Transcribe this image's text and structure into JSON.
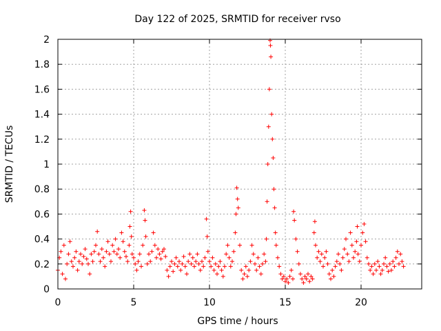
{
  "chart_data": {
    "type": "scatter",
    "title": "Day 122 of 2025, SRMTID for receiver rvso",
    "xlabel": "GPS time / hours",
    "ylabel": "SRMTID / TECUs",
    "xlim": [
      0,
      24
    ],
    "ylim": [
      0,
      2
    ],
    "xticks": [
      0,
      5,
      10,
      15,
      20
    ],
    "yticks": [
      0,
      0.2,
      0.4,
      0.6,
      0.8,
      1,
      1.2,
      1.4,
      1.6,
      1.8,
      2
    ],
    "grid": true,
    "marker": "+",
    "color": "#ff0000",
    "series": [
      {
        "name": "SRMTID",
        "points": [
          [
            0.0,
            0.15
          ],
          [
            0.1,
            0.25
          ],
          [
            0.2,
            0.3
          ],
          [
            0.3,
            0.12
          ],
          [
            0.4,
            0.35
          ],
          [
            0.5,
            0.08
          ],
          [
            0.6,
            0.2
          ],
          [
            0.7,
            0.28
          ],
          [
            0.8,
            0.38
          ],
          [
            0.9,
            0.22
          ],
          [
            1.0,
            0.18
          ],
          [
            1.1,
            0.25
          ],
          [
            1.2,
            0.3
          ],
          [
            1.3,
            0.15
          ],
          [
            1.4,
            0.22
          ],
          [
            1.5,
            0.28
          ],
          [
            1.6,
            0.2
          ],
          [
            1.7,
            0.26
          ],
          [
            1.8,
            0.32
          ],
          [
            1.9,
            0.24
          ],
          [
            2.0,
            0.2
          ],
          [
            2.1,
            0.12
          ],
          [
            2.2,
            0.28
          ],
          [
            2.3,
            0.22
          ],
          [
            2.4,
            0.3
          ],
          [
            2.5,
            0.35
          ],
          [
            2.6,
            0.46
          ],
          [
            2.7,
            0.28
          ],
          [
            2.8,
            0.22
          ],
          [
            2.9,
            0.32
          ],
          [
            3.0,
            0.25
          ],
          [
            3.1,
            0.18
          ],
          [
            3.2,
            0.3
          ],
          [
            3.3,
            0.38
          ],
          [
            3.4,
            0.28
          ],
          [
            3.5,
            0.22
          ],
          [
            3.6,
            0.35
          ],
          [
            3.7,
            0.3
          ],
          [
            3.8,
            0.4
          ],
          [
            3.9,
            0.28
          ],
          [
            4.0,
            0.32
          ],
          [
            4.1,
            0.25
          ],
          [
            4.2,
            0.45
          ],
          [
            4.3,
            0.38
          ],
          [
            4.4,
            0.3
          ],
          [
            4.5,
            0.26
          ],
          [
            4.6,
            0.22
          ],
          [
            4.7,
            0.35
          ],
          [
            4.75,
            0.5
          ],
          [
            4.8,
            0.62
          ],
          [
            4.85,
            0.42
          ],
          [
            4.9,
            0.28
          ],
          [
            5.0,
            0.25
          ],
          [
            5.1,
            0.2
          ],
          [
            5.2,
            0.15
          ],
          [
            5.3,
            0.22
          ],
          [
            5.4,
            0.28
          ],
          [
            5.5,
            0.18
          ],
          [
            5.6,
            0.35
          ],
          [
            5.7,
            0.63
          ],
          [
            5.75,
            0.55
          ],
          [
            5.8,
            0.42
          ],
          [
            5.9,
            0.2
          ],
          [
            6.0,
            0.28
          ],
          [
            6.1,
            0.22
          ],
          [
            6.2,
            0.3
          ],
          [
            6.3,
            0.45
          ],
          [
            6.4,
            0.35
          ],
          [
            6.5,
            0.25
          ],
          [
            6.6,
            0.32
          ],
          [
            6.7,
            0.28
          ],
          [
            6.8,
            0.24
          ],
          [
            6.9,
            0.3
          ],
          [
            7.0,
            0.32
          ],
          [
            7.1,
            0.26
          ],
          [
            7.2,
            0.15
          ],
          [
            7.3,
            0.1
          ],
          [
            7.4,
            0.18
          ],
          [
            7.5,
            0.22
          ],
          [
            7.6,
            0.14
          ],
          [
            7.7,
            0.2
          ],
          [
            7.8,
            0.25
          ],
          [
            7.9,
            0.18
          ],
          [
            8.0,
            0.22
          ],
          [
            8.1,
            0.15
          ],
          [
            8.2,
            0.2
          ],
          [
            8.3,
            0.26
          ],
          [
            8.4,
            0.18
          ],
          [
            8.5,
            0.12
          ],
          [
            8.6,
            0.22
          ],
          [
            8.7,
            0.28
          ],
          [
            8.8,
            0.2
          ],
          [
            8.9,
            0.25
          ],
          [
            9.0,
            0.18
          ],
          [
            9.1,
            0.22
          ],
          [
            9.2,
            0.28
          ],
          [
            9.3,
            0.2
          ],
          [
            9.4,
            0.15
          ],
          [
            9.5,
            0.22
          ],
          [
            9.6,
            0.18
          ],
          [
            9.7,
            0.25
          ],
          [
            9.8,
            0.56
          ],
          [
            9.85,
            0.42
          ],
          [
            9.9,
            0.3
          ],
          [
            10.0,
            0.22
          ],
          [
            10.1,
            0.18
          ],
          [
            10.2,
            0.25
          ],
          [
            10.3,
            0.15
          ],
          [
            10.4,
            0.2
          ],
          [
            10.5,
            0.12
          ],
          [
            10.6,
            0.18
          ],
          [
            10.7,
            0.22
          ],
          [
            10.8,
            0.15
          ],
          [
            10.9,
            0.1
          ],
          [
            11.0,
            0.18
          ],
          [
            11.1,
            0.28
          ],
          [
            11.2,
            0.35
          ],
          [
            11.3,
            0.25
          ],
          [
            11.4,
            0.18
          ],
          [
            11.5,
            0.22
          ],
          [
            11.6,
            0.3
          ],
          [
            11.7,
            0.45
          ],
          [
            11.75,
            0.6
          ],
          [
            11.8,
            0.81
          ],
          [
            11.85,
            0.72
          ],
          [
            11.9,
            0.65
          ],
          [
            12.0,
            0.35
          ],
          [
            12.1,
            0.15
          ],
          [
            12.2,
            0.08
          ],
          [
            12.3,
            0.12
          ],
          [
            12.4,
            0.18
          ],
          [
            12.5,
            0.1
          ],
          [
            12.6,
            0.15
          ],
          [
            12.7,
            0.22
          ],
          [
            12.8,
            0.35
          ],
          [
            12.9,
            0.28
          ],
          [
            13.0,
            0.2
          ],
          [
            13.1,
            0.15
          ],
          [
            13.2,
            0.25
          ],
          [
            13.3,
            0.18
          ],
          [
            13.4,
            0.12
          ],
          [
            13.5,
            0.2
          ],
          [
            13.6,
            0.28
          ],
          [
            13.7,
            0.22
          ],
          [
            13.75,
            0.4
          ],
          [
            13.8,
            0.7
          ],
          [
            13.85,
            1.0
          ],
          [
            13.9,
            1.3
          ],
          [
            13.95,
            1.6
          ],
          [
            14.0,
            1.99
          ],
          [
            14.02,
            1.95
          ],
          [
            14.05,
            1.86
          ],
          [
            14.1,
            1.4
          ],
          [
            14.15,
            1.2
          ],
          [
            14.2,
            1.05
          ],
          [
            14.25,
            0.8
          ],
          [
            14.3,
            0.65
          ],
          [
            14.35,
            0.45
          ],
          [
            14.4,
            0.35
          ],
          [
            14.5,
            0.25
          ],
          [
            14.6,
            0.18
          ],
          [
            14.7,
            0.12
          ],
          [
            14.8,
            0.08
          ],
          [
            14.9,
            0.1
          ],
          [
            15.0,
            0.06
          ],
          [
            15.1,
            0.08
          ],
          [
            15.2,
            0.05
          ],
          [
            15.3,
            0.1
          ],
          [
            15.4,
            0.15
          ],
          [
            15.5,
            0.08
          ],
          [
            15.55,
            0.62
          ],
          [
            15.6,
            0.55
          ],
          [
            15.7,
            0.4
          ],
          [
            15.8,
            0.3
          ],
          [
            15.9,
            0.2
          ],
          [
            16.0,
            0.12
          ],
          [
            16.1,
            0.08
          ],
          [
            16.2,
            0.05
          ],
          [
            16.3,
            0.1
          ],
          [
            16.4,
            0.08
          ],
          [
            16.5,
            0.12
          ],
          [
            16.6,
            0.06
          ],
          [
            16.7,
            0.1
          ],
          [
            16.8,
            0.08
          ],
          [
            16.9,
            0.45
          ],
          [
            16.95,
            0.54
          ],
          [
            17.0,
            0.35
          ],
          [
            17.1,
            0.25
          ],
          [
            17.2,
            0.3
          ],
          [
            17.3,
            0.22
          ],
          [
            17.4,
            0.28
          ],
          [
            17.5,
            0.18
          ],
          [
            17.6,
            0.25
          ],
          [
            17.7,
            0.3
          ],
          [
            17.8,
            0.2
          ],
          [
            17.9,
            0.12
          ],
          [
            18.0,
            0.08
          ],
          [
            18.1,
            0.15
          ],
          [
            18.2,
            0.1
          ],
          [
            18.3,
            0.18
          ],
          [
            18.4,
            0.22
          ],
          [
            18.5,
            0.28
          ],
          [
            18.6,
            0.2
          ],
          [
            18.7,
            0.15
          ],
          [
            18.8,
            0.25
          ],
          [
            18.9,
            0.32
          ],
          [
            19.0,
            0.4
          ],
          [
            19.1,
            0.28
          ],
          [
            19.2,
            0.22
          ],
          [
            19.3,
            0.45
          ],
          [
            19.4,
            0.35
          ],
          [
            19.5,
            0.25
          ],
          [
            19.6,
            0.3
          ],
          [
            19.7,
            0.38
          ],
          [
            19.75,
            0.5
          ],
          [
            19.8,
            0.28
          ],
          [
            19.9,
            0.22
          ],
          [
            20.0,
            0.35
          ],
          [
            20.1,
            0.45
          ],
          [
            20.2,
            0.52
          ],
          [
            20.3,
            0.38
          ],
          [
            20.4,
            0.25
          ],
          [
            20.5,
            0.2
          ],
          [
            20.6,
            0.15
          ],
          [
            20.7,
            0.18
          ],
          [
            20.8,
            0.12
          ],
          [
            20.9,
            0.2
          ],
          [
            21.0,
            0.15
          ],
          [
            21.1,
            0.22
          ],
          [
            21.2,
            0.18
          ],
          [
            21.3,
            0.12
          ],
          [
            21.4,
            0.15
          ],
          [
            21.5,
            0.2
          ],
          [
            21.6,
            0.25
          ],
          [
            21.7,
            0.18
          ],
          [
            21.8,
            0.14
          ],
          [
            21.9,
            0.2
          ],
          [
            22.0,
            0.15
          ],
          [
            22.1,
            0.22
          ],
          [
            22.2,
            0.18
          ],
          [
            22.3,
            0.25
          ],
          [
            22.4,
            0.3
          ],
          [
            22.5,
            0.2
          ],
          [
            22.6,
            0.28
          ],
          [
            22.7,
            0.22
          ],
          [
            22.8,
            0.18
          ]
        ]
      }
    ]
  }
}
